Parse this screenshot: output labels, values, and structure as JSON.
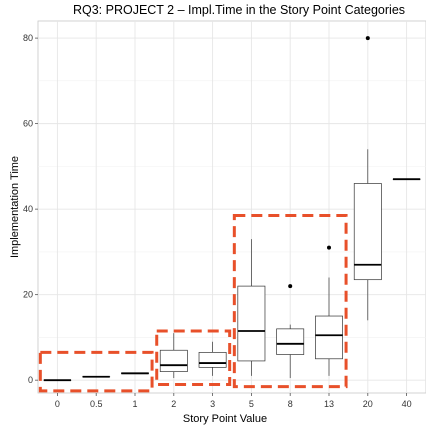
{
  "chart_data": {
    "type": "boxplot",
    "title": "RQ3: PROJECT 2 – Impl.Time in the Story Point Categories",
    "xlabel": "Story Point Value",
    "ylabel": "Implementation Time",
    "categories": [
      "0",
      "0.5",
      "1",
      "2",
      "3",
      "5",
      "8",
      "13",
      "20",
      "40"
    ],
    "ylim": [
      -3,
      84
    ],
    "yticks": [
      0,
      20,
      40,
      60,
      80
    ],
    "grid": true,
    "boxes": [
      {
        "category": "0",
        "whisker_low": 0,
        "q1": 0,
        "median": 0,
        "q3": 0,
        "whisker_high": 0,
        "outliers": []
      },
      {
        "category": "0.5",
        "whisker_low": 0.8,
        "q1": 0.8,
        "median": 0.8,
        "q3": 0.8,
        "whisker_high": 0.8,
        "outliers": []
      },
      {
        "category": "1",
        "whisker_low": 1.5,
        "q1": 1.5,
        "median": 1.6,
        "q3": 1.7,
        "whisker_high": 1.7,
        "outliers": []
      },
      {
        "category": "2",
        "whisker_low": 0.5,
        "q1": 2,
        "median": 3.5,
        "q3": 7,
        "whisker_high": 11,
        "outliers": []
      },
      {
        "category": "3",
        "whisker_low": 1,
        "q1": 3,
        "median": 4,
        "q3": 6.5,
        "whisker_high": 9,
        "outliers": []
      },
      {
        "category": "5",
        "whisker_low": 1,
        "q1": 4.5,
        "median": 11.5,
        "q3": 22,
        "whisker_high": 33,
        "outliers": []
      },
      {
        "category": "8",
        "whisker_low": 0.5,
        "q1": 6,
        "median": 8.5,
        "q3": 12,
        "whisker_high": 13,
        "outliers": [
          22
        ]
      },
      {
        "category": "13",
        "whisker_low": 1,
        "q1": 5,
        "median": 10.5,
        "q3": 15,
        "whisker_high": 24,
        "outliers": [
          31
        ]
      },
      {
        "category": "20",
        "whisker_low": 14,
        "q1": 23.5,
        "median": 27,
        "q3": 46,
        "whisker_high": 54,
        "outliers": [
          80
        ]
      },
      {
        "category": "40",
        "whisker_low": 47,
        "q1": 47,
        "median": 47,
        "q3": 47,
        "whisker_high": 47,
        "outliers": []
      }
    ],
    "highlight_groups": [
      {
        "from": "0",
        "to": "1",
        "ymin": -2.5,
        "ymax": 6.5
      },
      {
        "from": "2",
        "to": "3",
        "ymin": -1,
        "ymax": 11.5
      },
      {
        "from": "5",
        "to": "13",
        "ymin": -1.5,
        "ymax": 38.5
      }
    ],
    "highlight_color": "#e8502a",
    "box_color": "#333333",
    "grid_color": "#e6e6e6"
  }
}
